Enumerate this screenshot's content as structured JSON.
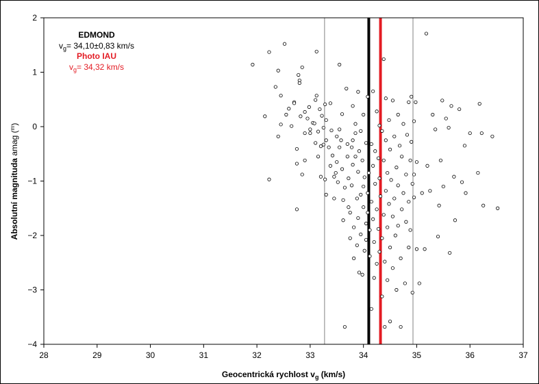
{
  "chart_data": {
    "type": "scatter",
    "xlabel_main": "Geocentrická rychlost v",
    "xlabel_sub": "g",
    "xlabel_unit": " (km/s)",
    "ylabel_main": "Absolutní  magnituda",
    "ylabel_unit": " amag (",
    "ylabel_unit_sup": "m",
    "ylabel_unit_end": ")",
    "xlim": [
      28,
      37
    ],
    "ylim": [
      -4,
      2
    ],
    "x_ticks": [
      28,
      29,
      30,
      31,
      32,
      33,
      34,
      35,
      36,
      37
    ],
    "y_ticks": [
      -4,
      -3,
      -2,
      -1,
      0,
      1,
      2
    ],
    "grid": false,
    "colors": {
      "edmond": "#000000",
      "iau": "#e31b23",
      "sigma": "#808080"
    },
    "legend": {
      "edmond_title": "EDMOND",
      "edmond_v": "v",
      "edmond_sub": "g",
      "edmond_value": "= 34,10±0,83  km/s",
      "iau_title": "Photo IAU",
      "iau_v": "v",
      "iau_sub": "g",
      "iau_value": "= 34,32  km/s"
    },
    "vlines": [
      {
        "name": "edmond-mean",
        "x": 34.1,
        "color": "#000000",
        "width": 4
      },
      {
        "name": "iau-mean",
        "x": 34.32,
        "color": "#e31b23",
        "width": 4
      },
      {
        "name": "edmond-minus-sigma",
        "x": 33.27,
        "color": "#808080",
        "width": 1
      },
      {
        "name": "edmond-plus-sigma",
        "x": 34.93,
        "color": "#808080",
        "width": 1
      }
    ],
    "points": [
      [
        31.92,
        1.14
      ],
      [
        32.15,
        0.19
      ],
      [
        32.23,
        1.37
      ],
      [
        32.23,
        -0.97
      ],
      [
        32.35,
        0.73
      ],
      [
        32.4,
        1.03
      ],
      [
        32.4,
        -0.18
      ],
      [
        32.45,
        0.57
      ],
      [
        32.45,
        0.04
      ],
      [
        32.52,
        1.52
      ],
      [
        32.55,
        0.22
      ],
      [
        32.6,
        0.33
      ],
      [
        32.65,
        0.01
      ],
      [
        32.7,
        0.45
      ],
      [
        32.7,
        0.43
      ],
      [
        32.75,
        -0.41
      ],
      [
        32.75,
        -0.68
      ],
      [
        32.75,
        -1.52
      ],
      [
        32.78,
        0.95
      ],
      [
        32.8,
        0.85
      ],
      [
        32.8,
        0.8
      ],
      [
        32.82,
        0.19
      ],
      [
        32.85,
        1.09
      ],
      [
        32.85,
        -0.88
      ],
      [
        32.9,
        0.27
      ],
      [
        32.9,
        -0.12
      ],
      [
        32.9,
        -0.62
      ],
      [
        32.95,
        0.15
      ],
      [
        32.98,
        0.36
      ],
      [
        33.0,
        -0.05
      ],
      [
        33.0,
        -0.12
      ],
      [
        33.05,
        0.07
      ],
      [
        33.08,
        0.06
      ],
      [
        33.1,
        0.49
      ],
      [
        33.1,
        -0.3
      ],
      [
        33.12,
        1.38
      ],
      [
        33.12,
        0.57
      ],
      [
        33.15,
        -0.09
      ],
      [
        33.15,
        -0.55
      ],
      [
        33.18,
        0.32
      ],
      [
        33.2,
        -0.36
      ],
      [
        33.2,
        -0.92
      ],
      [
        33.22,
        0.2
      ],
      [
        33.25,
        -0.02
      ],
      [
        33.25,
        -0.33
      ],
      [
        33.28,
        0.41
      ],
      [
        33.28,
        -0.97
      ],
      [
        33.3,
        0.12
      ],
      [
        33.3,
        -0.25
      ],
      [
        33.3,
        -1.25
      ],
      [
        33.35,
        -0.38
      ],
      [
        33.38,
        0.43
      ],
      [
        33.38,
        -0.72
      ],
      [
        33.4,
        -0.07
      ],
      [
        33.42,
        -0.53
      ],
      [
        33.45,
        -0.92
      ],
      [
        33.45,
        -1.32
      ],
      [
        33.48,
        -0.85
      ],
      [
        33.5,
        -0.18
      ],
      [
        33.5,
        -0.65
      ],
      [
        33.52,
        -1.02
      ],
      [
        33.55,
        1.14
      ],
      [
        33.55,
        -0.38
      ],
      [
        33.55,
        -0.05
      ],
      [
        33.58,
        -0.25
      ],
      [
        33.6,
        0.23
      ],
      [
        33.6,
        -0.78
      ],
      [
        33.62,
        -1.35
      ],
      [
        33.62,
        -1.72
      ],
      [
        33.65,
        -1.12
      ],
      [
        33.65,
        -3.68
      ],
      [
        33.68,
        0.7
      ],
      [
        33.7,
        -0.32
      ],
      [
        33.7,
        -0.55
      ],
      [
        33.72,
        -0.95
      ],
      [
        33.72,
        -1.48
      ],
      [
        33.75,
        -1.58
      ],
      [
        33.75,
        -2.05
      ],
      [
        33.78,
        -0.38
      ],
      [
        33.78,
        -1.08
      ],
      [
        33.8,
        0.38
      ],
      [
        33.8,
        -0.25
      ],
      [
        33.8,
        -0.7
      ],
      [
        33.82,
        -1.85
      ],
      [
        33.82,
        -2.42
      ],
      [
        33.85,
        0.05
      ],
      [
        33.85,
        -0.55
      ],
      [
        33.85,
        -0.12
      ],
      [
        33.88,
        -1.32
      ],
      [
        33.88,
        -2.18
      ],
      [
        33.9,
        0.64
      ],
      [
        33.9,
        -0.83
      ],
      [
        33.9,
        -1.68
      ],
      [
        33.92,
        -0.45
      ],
      [
        33.92,
        -2.68
      ],
      [
        33.95,
        -0.08
      ],
      [
        33.95,
        -1.25
      ],
      [
        33.95,
        -1.98
      ],
      [
        33.98,
        -0.62
      ],
      [
        33.98,
        -2.72
      ],
      [
        34.0,
        0.22
      ],
      [
        34.0,
        -1.48
      ],
      [
        34.0,
        -1.1
      ],
      [
        34.02,
        -2.28
      ],
      [
        34.02,
        -0.93
      ],
      [
        34.05,
        -0.3
      ],
      [
        34.05,
        -1.78
      ],
      [
        34.05,
        -2.08
      ],
      [
        34.08,
        0.55
      ],
      [
        34.08,
        -1.22
      ],
      [
        34.08,
        -1.58
      ],
      [
        34.1,
        -0.85
      ],
      [
        34.12,
        -1.9
      ],
      [
        34.12,
        -2.38
      ],
      [
        34.15,
        -0.32
      ],
      [
        34.15,
        -1.38
      ],
      [
        34.15,
        -3.35
      ],
      [
        34.18,
        0.65
      ],
      [
        34.18,
        -0.72
      ],
      [
        34.18,
        -1.7
      ],
      [
        34.2,
        -2.78
      ],
      [
        34.2,
        -2.12
      ],
      [
        34.22,
        -0.45
      ],
      [
        34.22,
        -1.05
      ],
      [
        34.25,
        0.28
      ],
      [
        34.25,
        -1.52
      ],
      [
        34.25,
        -2.52
      ],
      [
        34.28,
        -0.58
      ],
      [
        34.28,
        -1.88
      ],
      [
        34.3,
        0.02
      ],
      [
        34.3,
        -0.95
      ],
      [
        34.3,
        -2.3
      ],
      [
        34.32,
        -1.28
      ],
      [
        34.35,
        -0.08
      ],
      [
        34.35,
        -2.05
      ],
      [
        34.35,
        -3.12
      ],
      [
        34.38,
        1.24
      ],
      [
        34.38,
        -0.62
      ],
      [
        34.38,
        -1.62
      ],
      [
        34.4,
        -2.48
      ],
      [
        34.4,
        -3.68
      ],
      [
        34.42,
        0.52
      ],
      [
        34.42,
        -0.25
      ],
      [
        34.42,
        -1.18
      ],
      [
        34.45,
        -0.85
      ],
      [
        34.45,
        -1.85
      ],
      [
        34.45,
        -2.82
      ],
      [
        34.48,
        0.12
      ],
      [
        34.48,
        -1.42
      ],
      [
        34.5,
        -0.42
      ],
      [
        34.5,
        -2.22
      ],
      [
        34.5,
        -3.58
      ],
      [
        34.52,
        -0.98
      ],
      [
        34.55,
        0.48
      ],
      [
        34.55,
        -1.65
      ],
      [
        34.55,
        -2.6
      ],
      [
        34.58,
        -0.18
      ],
      [
        34.58,
        -1.32
      ],
      [
        34.6,
        -2.0
      ],
      [
        34.62,
        -0.75
      ],
      [
        34.62,
        -3.0
      ],
      [
        34.65,
        0.22
      ],
      [
        34.65,
        -1.08
      ],
      [
        34.65,
        -1.82
      ],
      [
        34.68,
        -0.35
      ],
      [
        34.7,
        -2.42
      ],
      [
        34.7,
        -3.68
      ],
      [
        34.72,
        -0.55
      ],
      [
        34.72,
        -1.52
      ],
      [
        34.75,
        0.05
      ],
      [
        34.75,
        -1.22
      ],
      [
        34.78,
        -2.88
      ],
      [
        34.8,
        -0.88
      ],
      [
        34.8,
        -1.75
      ],
      [
        34.82,
        -0.15
      ],
      [
        34.85,
        0.45
      ],
      [
        34.85,
        -1.38
      ],
      [
        34.85,
        -2.22
      ],
      [
        34.88,
        -0.62
      ],
      [
        34.88,
        -1.9
      ],
      [
        34.9,
        0.55
      ],
      [
        34.9,
        -0.28
      ],
      [
        34.92,
        -1.05
      ],
      [
        34.92,
        -3.05
      ],
      [
        34.95,
        0.1
      ],
      [
        34.95,
        -0.88
      ],
      [
        34.95,
        -1.3
      ],
      [
        34.98,
        0.45
      ],
      [
        35.0,
        -2.25
      ],
      [
        35.0,
        -0.65
      ],
      [
        35.05,
        -2.88
      ],
      [
        35.1,
        -1.22
      ],
      [
        35.15,
        -2.25
      ],
      [
        35.18,
        1.71
      ],
      [
        35.2,
        -0.72
      ],
      [
        35.25,
        -1.18
      ],
      [
        35.3,
        0.22
      ],
      [
        35.35,
        -0.05
      ],
      [
        35.4,
        -2.02
      ],
      [
        35.42,
        -1.45
      ],
      [
        35.45,
        -0.62
      ],
      [
        35.48,
        0.48
      ],
      [
        35.5,
        -1.1
      ],
      [
        35.55,
        0.15
      ],
      [
        35.6,
        -0.02
      ],
      [
        35.62,
        -2.32
      ],
      [
        35.65,
        0.38
      ],
      [
        35.7,
        -0.92
      ],
      [
        35.72,
        -1.72
      ],
      [
        35.8,
        0.32
      ],
      [
        35.85,
        -1.02
      ],
      [
        35.9,
        -0.35
      ],
      [
        35.92,
        -1.22
      ],
      [
        36.0,
        -0.12
      ],
      [
        36.15,
        -0.85
      ],
      [
        36.18,
        0.42
      ],
      [
        36.22,
        -0.12
      ],
      [
        36.25,
        -1.45
      ],
      [
        36.42,
        -0.18
      ],
      [
        36.52,
        -1.5
      ]
    ]
  }
}
